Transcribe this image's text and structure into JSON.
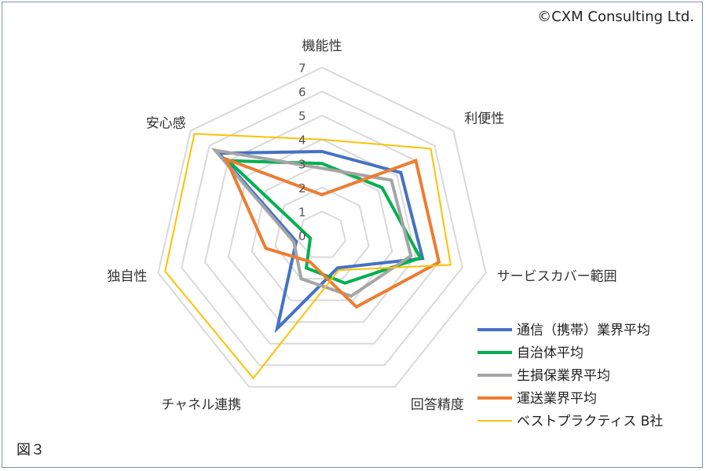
{
  "copyright": "©CXM Consulting Ltd.",
  "figure_label": "図３",
  "chart_data": {
    "type": "radar",
    "axes": [
      "機能性",
      "利便性",
      "サービスカバー範囲",
      "回答精度",
      "チャネル連携",
      "独自性",
      "安心感"
    ],
    "range": [
      0,
      7
    ],
    "ticks": [
      0,
      1,
      2,
      3,
      4,
      5,
      6,
      7
    ],
    "grid": true,
    "legend": "bottom-right",
    "series": [
      {
        "name": "通信（携帯）業界平均",
        "color": "#4472c4",
        "values": [
          3.5,
          4.2,
          4.3,
          1.5,
          4.3,
          1.1,
          5.5
        ]
      },
      {
        "name": "自治体平均",
        "color": "#00b050",
        "values": [
          3.0,
          3.2,
          4.2,
          2.2,
          1.5,
          0.5,
          5.0
        ]
      },
      {
        "name": "生損保業界平均",
        "color": "#a5a5a5",
        "values": [
          2.8,
          3.7,
          3.8,
          2.8,
          2.0,
          1.2,
          5.7
        ]
      },
      {
        "name": "運送業界平均",
        "color": "#ed7d31",
        "values": [
          1.7,
          5.0,
          5.0,
          3.3,
          1.2,
          2.4,
          5.1
        ]
      },
      {
        "name": "ベストプラクティス B社",
        "color": "#ffc000",
        "values": [
          4.0,
          5.8,
          5.5,
          1.6,
          6.6,
          6.7,
          6.8
        ]
      }
    ]
  }
}
